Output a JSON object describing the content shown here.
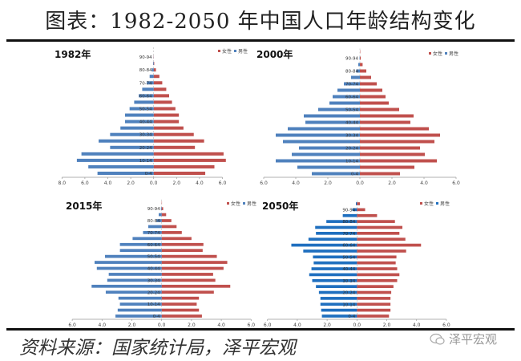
{
  "title": "图表：1982-2050 年中国人口年龄结构变化",
  "source": "资料来源：国家统计局，泽平宏观",
  "watermark": "泽平宏观",
  "legend": {
    "female": "女性",
    "male": "男性"
  },
  "colors": {
    "female": "#c0504d",
    "male": "#4f81bd",
    "male_2050": "#1f6fbf"
  },
  "chart_data": [
    {
      "type": "bar",
      "orientation": "horizontal-pyramid",
      "title": "1982年",
      "tick_labels": [
        "0-4",
        "10-14",
        "20-24",
        "30-34",
        "40-44",
        "50-54",
        "60-64",
        "70-74",
        "80-84",
        "90-94"
      ],
      "xticks": [
        "8.0",
        "6.0",
        "4.0",
        "2.0",
        "0.0",
        "2.0",
        "4.0",
        "6.0"
      ],
      "xlim": [
        -8,
        8
      ],
      "legend": "top-right",
      "series": [
        {
          "name": "女性",
          "values": [
            4.5,
            5.3,
            6.3,
            6.1,
            3.6,
            4.4,
            3.5,
            2.6,
            2.2,
            2.2,
            1.9,
            1.6,
            1.35,
            1.1,
            0.75,
            0.5,
            0.2,
            0.05,
            0.02,
            0
          ]
        },
        {
          "name": "男性",
          "values": [
            4.9,
            5.7,
            6.7,
            6.3,
            3.8,
            4.8,
            3.8,
            2.9,
            2.5,
            2.5,
            2.1,
            1.7,
            1.3,
            1.0,
            0.6,
            0.35,
            0.15,
            0.05,
            0.01,
            0
          ]
        }
      ]
    },
    {
      "type": "bar",
      "orientation": "horizontal-pyramid",
      "title": "2000年",
      "tick_labels": [
        "0-4",
        "10-14",
        "20-24",
        "30-34",
        "40-44",
        "50-54",
        "60-64",
        "70-74",
        "80-84",
        "90-94"
      ],
      "xticks": [
        "6.0",
        "4.0",
        "2.0",
        "0.0",
        "2.0",
        "4.0",
        "6.0"
      ],
      "xlim": [
        -6,
        6
      ],
      "legend": "top-right",
      "series": [
        {
          "name": "女性",
          "values": [
            2.5,
            3.4,
            4.8,
            4.05,
            3.75,
            4.65,
            5.0,
            4.3,
            3.15,
            3.35,
            2.45,
            1.8,
            1.6,
            1.4,
            1.05,
            0.7,
            0.4,
            0.17,
            0.05,
            0.02
          ]
        },
        {
          "name": "男性",
          "values": [
            3.0,
            3.9,
            5.25,
            4.25,
            3.8,
            4.8,
            5.25,
            4.5,
            3.4,
            3.5,
            2.6,
            1.9,
            1.7,
            1.4,
            1.0,
            0.55,
            0.23,
            0.1,
            0.02,
            0
          ]
        }
      ]
    },
    {
      "type": "bar",
      "orientation": "horizontal-pyramid",
      "title": "2015年",
      "tick_labels": [
        "0-4",
        "10-14",
        "20-24",
        "30-34",
        "40-44",
        "50-54",
        "60-64",
        "70-74",
        "80-84",
        "90-94"
      ],
      "xticks": [
        "6.0",
        "4.0",
        "2.0",
        "0.0",
        "2.0",
        "4.0",
        "6.0"
      ],
      "xlim": [
        -6,
        6
      ],
      "legend": "top-right",
      "series": [
        {
          "name": "女性",
          "values": [
            2.7,
            2.5,
            2.35,
            2.5,
            3.5,
            4.6,
            3.6,
            3.45,
            4.15,
            4.4,
            3.7,
            2.75,
            2.8,
            2.0,
            1.35,
            1.0,
            0.65,
            0.3,
            0.1,
            0.02
          ]
        },
        {
          "name": "男性",
          "values": [
            3.1,
            2.95,
            2.8,
            2.9,
            3.75,
            4.7,
            3.65,
            3.55,
            4.35,
            4.5,
            3.8,
            2.8,
            2.8,
            1.95,
            1.25,
            0.9,
            0.35,
            0.2,
            0.05,
            0
          ]
        }
      ]
    },
    {
      "type": "bar",
      "orientation": "horizontal-pyramid",
      "title": "2050年",
      "tick_labels": [
        "0-4",
        "10-14",
        "20-24",
        "30-34",
        "40-44",
        "50-54",
        "60-64",
        "70-74",
        "80-84",
        "90-94"
      ],
      "xticks": [
        "6.0",
        "4.0",
        "2.0",
        "0.0",
        "2.0",
        "4.0",
        "6.0"
      ],
      "xlim": [
        -6,
        6
      ],
      "legend": "top-right",
      "series": [
        {
          "name": "女性",
          "values": [
            2.15,
            2.25,
            2.25,
            2.25,
            2.3,
            2.45,
            2.7,
            2.85,
            2.7,
            2.6,
            2.65,
            3.3,
            4.3,
            3.25,
            2.85,
            3.05,
            2.55,
            1.35,
            0.55,
            0.2
          ]
        },
        {
          "name": "男性",
          "values": [
            2.35,
            2.4,
            2.45,
            2.45,
            2.55,
            2.75,
            3.0,
            3.2,
            3.05,
            2.9,
            2.95,
            3.6,
            4.4,
            3.25,
            2.75,
            2.8,
            2.05,
            0.95,
            0.3,
            0.07
          ]
        }
      ]
    }
  ]
}
